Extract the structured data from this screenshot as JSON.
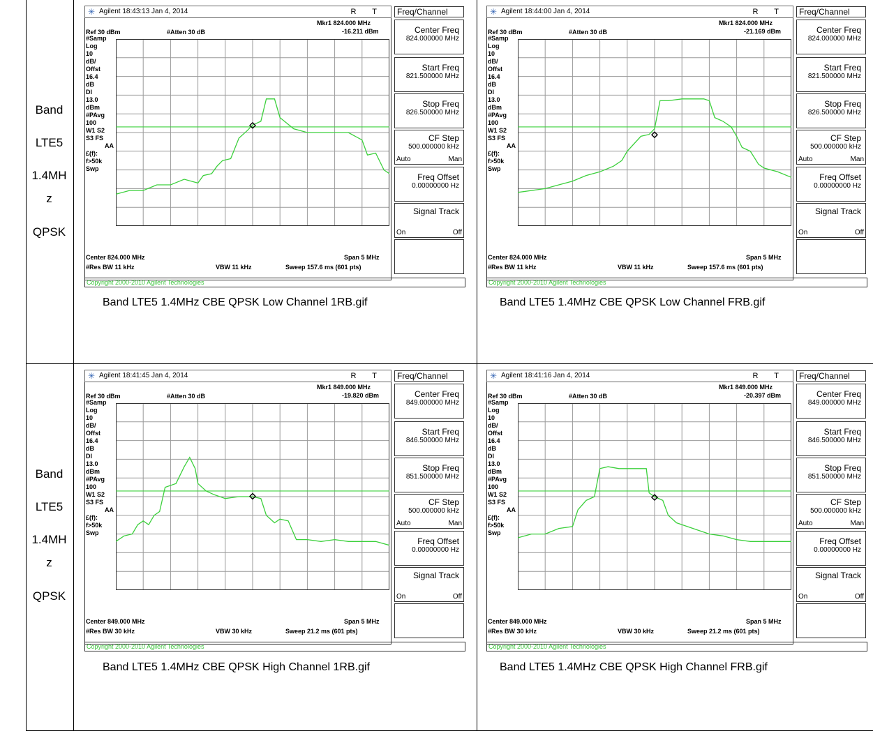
{
  "row_labels": [
    [
      "Band",
      "LTE5",
      "1.4MH",
      "z",
      "QPSK"
    ],
    [
      "Band",
      "LTE5",
      "1.4MH",
      "z",
      "QPSK"
    ]
  ],
  "panels": [
    {
      "caption": "Band LTE5 1.4MHz CBE QPSK Low Channel 1RB.gif",
      "title": "Agilent 18:43:13  Jan 4, 2014",
      "rt": "R T",
      "menu_title": "Freq/Channel",
      "mkr_freq": "Mkr1  824.000 MHz",
      "mkr_val": "-16.211 dBm",
      "ref": "Ref 30 dBm",
      "atten": "#Atten 30 dB",
      "left": [
        "#Samp",
        "Log",
        "10",
        "dB/",
        "Offst",
        "16.4",
        "dB",
        "Dl",
        "13.0",
        "dBm",
        "#PAvg",
        "100",
        "W1  S2",
        "S3  FS",
        "AA",
        "£(f):",
        "f>50k",
        "Swp"
      ],
      "center": "Center 824.000 MHz",
      "span": "Span 5 MHz",
      "rbw": "#Res BW 11 kHz",
      "vbw": "VBW 11 kHz",
      "sweep": "Sweep 157.6 ms (601 pts)",
      "copyright": "Copyright 2000-2010 Agilent Technologies",
      "softkeys": [
        {
          "l1": "Center Freq",
          "l2": "824.000000 MHz"
        },
        {
          "l1": "Start Freq",
          "l2": "821.500000 MHz"
        },
        {
          "l1": "Stop Freq",
          "l2": "826.500000 MHz"
        },
        {
          "l1": "CF Step",
          "l2": "500.000000 kHz",
          "a": "Auto",
          "m": "Man"
        },
        {
          "l1": "Freq Offset",
          "l2": "0.00000000  Hz"
        },
        {
          "l1": "Signal Track",
          "l2": "",
          "a": "On",
          "m": "Off"
        }
      ],
      "marker_x": 0.5,
      "marker_db": -16.2,
      "trace": [
        [
          0,
          -53
        ],
        [
          0.05,
          -51
        ],
        [
          0.1,
          -51
        ],
        [
          0.15,
          -48
        ],
        [
          0.2,
          -48
        ],
        [
          0.25,
          -45
        ],
        [
          0.3,
          -47
        ],
        [
          0.32,
          -43
        ],
        [
          0.35,
          -42
        ],
        [
          0.37,
          -38
        ],
        [
          0.39,
          -35
        ],
        [
          0.42,
          -34
        ],
        [
          0.45,
          -23
        ],
        [
          0.48,
          -19
        ],
        [
          0.5,
          -16
        ],
        [
          0.53,
          -14
        ],
        [
          0.55,
          -2
        ],
        [
          0.58,
          -2
        ],
        [
          0.6,
          -12
        ],
        [
          0.65,
          -18
        ],
        [
          0.7,
          -20
        ],
        [
          0.75,
          -20
        ],
        [
          0.8,
          -20
        ],
        [
          0.85,
          -20
        ],
        [
          0.9,
          -24
        ],
        [
          0.92,
          -32
        ],
        [
          0.95,
          -31
        ],
        [
          0.98,
          -40
        ],
        [
          1.0,
          -42
        ]
      ]
    },
    {
      "caption": "Band LTE5 1.4MHz CBE QPSK Low Channel FRB.gif",
      "title": "Agilent 18:44:00  Jan 4, 2014",
      "rt": "R T",
      "menu_title": "Freq/Channel",
      "mkr_freq": "Mkr1  824.000 MHz",
      "mkr_val": "-21.169 dBm",
      "ref": "Ref 30 dBm",
      "atten": "#Atten 30 dB",
      "left": [
        "#Samp",
        "Log",
        "10",
        "dB/",
        "Offst",
        "16.4",
        "dB",
        "Dl",
        "13.0",
        "dBm",
        "#PAvg",
        "100",
        "W1  S2",
        "S3  FS",
        "AA",
        "£(f):",
        "f>50k",
        "Swp"
      ],
      "center": "Center 824.000 MHz",
      "span": "Span 5 MHz",
      "rbw": "#Res BW 11 kHz",
      "vbw": "VBW 11 kHz",
      "sweep": "Sweep 157.6 ms (601 pts)",
      "copyright": "Copyright 2000-2010 Agilent Technologies",
      "softkeys": [
        {
          "l1": "Center Freq",
          "l2": "824.000000 MHz"
        },
        {
          "l1": "Start Freq",
          "l2": "821.500000 MHz"
        },
        {
          "l1": "Stop Freq",
          "l2": "826.500000 MHz"
        },
        {
          "l1": "CF Step",
          "l2": "500.000000 kHz",
          "a": "Auto",
          "m": "Man"
        },
        {
          "l1": "Freq Offset",
          "l2": "0.00000000  Hz"
        },
        {
          "l1": "Signal Track",
          "l2": "",
          "a": "On",
          "m": "Off"
        }
      ],
      "marker_x": 0.5,
      "marker_db": -21.2,
      "trace": [
        [
          0,
          -52
        ],
        [
          0.05,
          -51
        ],
        [
          0.1,
          -50
        ],
        [
          0.15,
          -48
        ],
        [
          0.2,
          -46
        ],
        [
          0.25,
          -43
        ],
        [
          0.3,
          -41
        ],
        [
          0.35,
          -38
        ],
        [
          0.38,
          -35
        ],
        [
          0.4,
          -30
        ],
        [
          0.45,
          -22
        ],
        [
          0.48,
          -21
        ],
        [
          0.5,
          -18
        ],
        [
          0.52,
          -3
        ],
        [
          0.55,
          -3
        ],
        [
          0.6,
          -2
        ],
        [
          0.65,
          -2
        ],
        [
          0.68,
          -2
        ],
        [
          0.7,
          -3
        ],
        [
          0.72,
          -12
        ],
        [
          0.75,
          -14
        ],
        [
          0.78,
          -17
        ],
        [
          0.8,
          -22
        ],
        [
          0.82,
          -28
        ],
        [
          0.85,
          -30
        ],
        [
          0.88,
          -37
        ],
        [
          0.9,
          -39
        ],
        [
          0.95,
          -41
        ],
        [
          1.0,
          -44
        ]
      ]
    },
    {
      "caption": "Band LTE5 1.4MHz CBE QPSK High Channel 1RB.gif",
      "title": "Agilent 18:41:45  Jan 4, 2014",
      "rt": "R T",
      "menu_title": "Freq/Channel",
      "mkr_freq": "Mkr1  849.000 MHz",
      "mkr_val": "-19.820 dBm",
      "ref": "Ref 30 dBm",
      "atten": "#Atten 30 dB",
      "left": [
        "#Samp",
        "Log",
        "10",
        "dB/",
        "Offst",
        "16.4",
        "dB",
        "Dl",
        "13.0",
        "dBm",
        "#PAvg",
        "100",
        "W1  S2",
        "S3  FS",
        "AA",
        "£(f):",
        "f>50k",
        "Swp"
      ],
      "center": "Center 849.000 MHz",
      "span": "Span 5 MHz",
      "rbw": "#Res BW 30 kHz",
      "vbw": "VBW 30 kHz",
      "sweep": "Sweep 21.2 ms (601 pts)",
      "copyright": "Copyright 2000-2010 Agilent Technologies",
      "softkeys": [
        {
          "l1": "Center Freq",
          "l2": "849.000000 MHz"
        },
        {
          "l1": "Start Freq",
          "l2": "846.500000 MHz"
        },
        {
          "l1": "Stop Freq",
          "l2": "851.500000 MHz"
        },
        {
          "l1": "CF Step",
          "l2": "500.000000 kHz",
          "a": "Auto",
          "m": "Man"
        },
        {
          "l1": "Freq Offset",
          "l2": "0.00000000  Hz"
        },
        {
          "l1": "Signal Track",
          "l2": "",
          "a": "On",
          "m": "Off"
        }
      ],
      "marker_x": 0.5,
      "marker_db": -19.8,
      "trace": [
        [
          0,
          -44
        ],
        [
          0.03,
          -41
        ],
        [
          0.06,
          -40
        ],
        [
          0.08,
          -35
        ],
        [
          0.1,
          -33
        ],
        [
          0.12,
          -35
        ],
        [
          0.14,
          -30
        ],
        [
          0.16,
          -28
        ],
        [
          0.18,
          -15
        ],
        [
          0.22,
          -13
        ],
        [
          0.25,
          -4
        ],
        [
          0.27,
          1
        ],
        [
          0.29,
          -5
        ],
        [
          0.3,
          -13
        ],
        [
          0.33,
          -17
        ],
        [
          0.36,
          -19
        ],
        [
          0.4,
          -21
        ],
        [
          0.45,
          -20
        ],
        [
          0.5,
          -20
        ],
        [
          0.53,
          -21
        ],
        [
          0.55,
          -30
        ],
        [
          0.58,
          -34
        ],
        [
          0.6,
          -32
        ],
        [
          0.63,
          -33
        ],
        [
          0.66,
          -43
        ],
        [
          0.7,
          -43
        ],
        [
          0.75,
          -44
        ],
        [
          0.8,
          -43
        ],
        [
          0.85,
          -44
        ],
        [
          0.9,
          -44
        ],
        [
          0.95,
          -44
        ],
        [
          1.0,
          -46
        ]
      ]
    },
    {
      "caption": "Band LTE5 1.4MHz CBE QPSK High Channel FRB.gif",
      "title": "Agilent 18:41:16  Jan 4, 2014",
      "rt": "R T",
      "menu_title": "Freq/Channel",
      "mkr_freq": "Mkr1  849.000 MHz",
      "mkr_val": "-20.397 dBm",
      "ref": "Ref 30 dBm",
      "atten": "#Atten 30 dB",
      "left": [
        "#Samp",
        "Log",
        "10",
        "dB/",
        "Offst",
        "16.4",
        "dB",
        "Dl",
        "13.0",
        "dBm",
        "#PAvg",
        "100",
        "W1  S2",
        "S3  FS",
        "AA",
        "£(f):",
        "f>50k",
        "Swp"
      ],
      "center": "Center 849.000 MHz",
      "span": "Span 5 MHz",
      "rbw": "#Res BW 30 kHz",
      "vbw": "VBW 30 kHz",
      "sweep": "Sweep 21.2 ms (601 pts)",
      "copyright": "Copyright 2000-2010 Agilent Technologies",
      "softkeys": [
        {
          "l1": "Center Freq",
          "l2": "849.000000 MHz"
        },
        {
          "l1": "Start Freq",
          "l2": "846.500000 MHz"
        },
        {
          "l1": "Stop Freq",
          "l2": "851.500000 MHz"
        },
        {
          "l1": "CF Step",
          "l2": "500.000000 kHz",
          "a": "Auto",
          "m": "Man"
        },
        {
          "l1": "Freq Offset",
          "l2": "0.00000000  Hz"
        },
        {
          "l1": "Signal Track",
          "l2": "",
          "a": "On",
          "m": "Off"
        }
      ],
      "marker_x": 0.5,
      "marker_db": -20.4,
      "trace": [
        [
          0,
          -42
        ],
        [
          0.05,
          -40
        ],
        [
          0.1,
          -40
        ],
        [
          0.15,
          -37
        ],
        [
          0.2,
          -36
        ],
        [
          0.22,
          -27
        ],
        [
          0.25,
          -22
        ],
        [
          0.28,
          -20
        ],
        [
          0.3,
          -5
        ],
        [
          0.33,
          -4
        ],
        [
          0.37,
          -5
        ],
        [
          0.4,
          -5
        ],
        [
          0.43,
          -5
        ],
        [
          0.45,
          -5
        ],
        [
          0.47,
          -5
        ],
        [
          0.48,
          -18
        ],
        [
          0.5,
          -20
        ],
        [
          0.53,
          -22
        ],
        [
          0.55,
          -30
        ],
        [
          0.58,
          -34
        ],
        [
          0.62,
          -36
        ],
        [
          0.66,
          -38
        ],
        [
          0.7,
          -40
        ],
        [
          0.75,
          -41
        ],
        [
          0.8,
          -43
        ],
        [
          0.85,
          -44
        ],
        [
          0.9,
          -44
        ],
        [
          0.95,
          -44
        ],
        [
          1.0,
          -44
        ]
      ]
    }
  ],
  "display_line_db": -17,
  "ref_db": 30,
  "db_per_div": 10
}
